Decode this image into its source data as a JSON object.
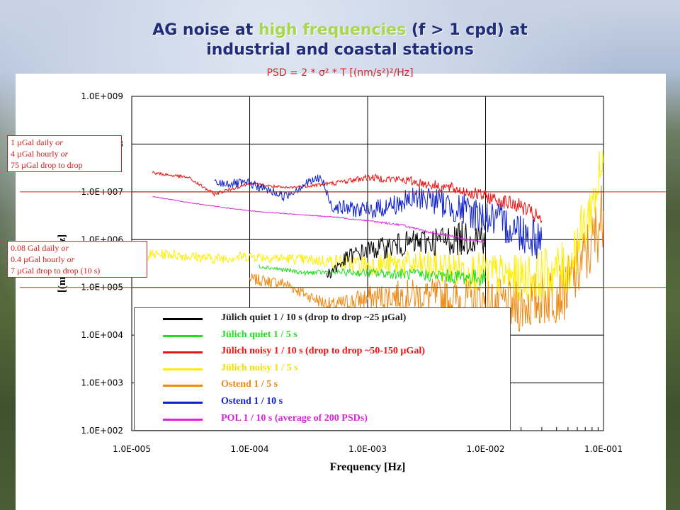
{
  "slide": {
    "title_line1_pre": "AG noise at ",
    "title_line1_highlight": "high frequencies",
    "title_line1_post": " (f > 1 cpd) at",
    "title_line2": "industrial and coastal stations",
    "formula": "PSD  = 2 * σ² * T  [(nm/s²)²/Hz]"
  },
  "annotations": [
    {
      "lines": [
        {
          "text": "1 µGal daily ",
          "em": "or"
        },
        {
          "text": "4 µGal hourly ",
          "em": "or"
        },
        {
          "text": "75 µGal drop to drop",
          "em": ""
        }
      ],
      "ref_y": 10000000
    },
    {
      "lines": [
        {
          "text": "0.08 Gal daily ",
          "em": "or"
        },
        {
          "text": "0.4 µGal hourly ",
          "em": "or"
        },
        {
          "text": "7 µGal drop to drop (10 s)",
          "em": ""
        }
      ],
      "ref_y": 100000
    }
  ],
  "chart_data": {
    "type": "line",
    "xscale": "log",
    "yscale": "log",
    "xlim": [
      1e-05,
      0.1
    ],
    "ylim": [
      100,
      1000000000
    ],
    "xlabel": "Frequency [Hz]",
    "ylabel": "[(nm/s²)²/Hz]",
    "xticks": [
      "1.0E-005",
      "1.0E-004",
      "1.0E-003",
      "1.0E-002",
      "1.0E-001"
    ],
    "yticks": [
      "1.0E+002",
      "1.0E+003",
      "1.0E+004",
      "1.0E+005",
      "1.0E+006",
      "1.0E+007",
      "1.0E+008",
      "1.0E+009"
    ],
    "grid": true,
    "legend_position": "bottom-center",
    "series": [
      {
        "name": "Jülich quiet 1 / 10 s (drop to drop ~25 µGal)",
        "color": "#000000",
        "x": [
          0.00045,
          0.0007,
          0.001,
          0.0015,
          0.002,
          0.003,
          0.005,
          0.007,
          0.01
        ],
        "y": [
          180000,
          450000,
          600000,
          700000,
          800000,
          900000,
          1000000,
          1100000,
          1200000
        ]
      },
      {
        "name": "Jülich quiet 1 / 5 s",
        "color": "#22dd22",
        "x": [
          0.00012,
          0.0002,
          0.0003,
          0.0005,
          0.001,
          0.002,
          0.005,
          0.01
        ],
        "y": [
          280000,
          230000,
          200000,
          210000,
          200000,
          190000,
          170000,
          160000
        ]
      },
      {
        "name": "Jülich noisy 1 / 10 s (drop to drop ~50-150 µGal)",
        "color": "#ee1111",
        "x": [
          1.5e-05,
          3e-05,
          5e-05,
          0.0001,
          0.0002,
          0.0005,
          0.001,
          0.002,
          0.003,
          0.005,
          0.007,
          0.01,
          0.015,
          0.02,
          0.03
        ],
        "y": [
          25000000,
          20000000,
          9000000,
          15000000,
          12000000,
          15000000,
          20000000,
          18000000,
          15000000,
          12000000,
          10000000,
          8000000,
          6000000,
          5000000,
          2500000
        ]
      },
      {
        "name": "Jülich noisy 1 / 5 s",
        "color": "#ffee00",
        "x": [
          1e-05,
          2e-05,
          5e-05,
          0.0001,
          0.0005,
          0.001,
          0.002,
          0.005,
          0.01,
          0.02,
          0.05,
          0.08,
          0.1
        ],
        "y": [
          450000,
          500000,
          400000,
          450000,
          350000,
          300000,
          300000,
          250000,
          200000,
          150000,
          250000,
          5000000,
          40000000
        ]
      },
      {
        "name": "Ostend 1 / 5 s",
        "color": "#ee8811",
        "x": [
          0.0001,
          0.0002,
          0.0003,
          0.0005,
          0.001,
          0.002,
          0.005,
          0.01,
          0.02,
          0.05,
          0.08,
          0.1
        ],
        "y": [
          150000,
          120000,
          70000,
          40000,
          60000,
          70000,
          60000,
          50000,
          40000,
          100000,
          800000,
          4000000
        ]
      },
      {
        "name": "Ostend 1 / 10 s",
        "color": "#1122cc",
        "x": [
          5e-05,
          0.0001,
          0.0002,
          0.0003,
          0.0004,
          0.0005,
          0.001,
          0.002,
          0.003,
          0.005,
          0.01,
          0.02,
          0.03
        ],
        "y": [
          15000000,
          15000000,
          8000000,
          15000000,
          20000000,
          5000000,
          4000000,
          6000000,
          8000000,
          5000000,
          3000000,
          1500000,
          1000000
        ]
      },
      {
        "name": "POL 1 / 10 s (average of 200 PSDs)",
        "color": "#dd22dd",
        "x": [
          1.5e-05,
          3e-05,
          5e-05,
          0.0001,
          0.0002,
          0.0005,
          0.001,
          0.002,
          0.003,
          0.005,
          0.007,
          0.01
        ],
        "y": [
          8000000,
          6000000,
          5000000,
          4000000,
          3500000,
          3000000,
          2500000,
          2000000,
          1500000,
          1200000,
          1000000,
          900000
        ]
      }
    ]
  }
}
